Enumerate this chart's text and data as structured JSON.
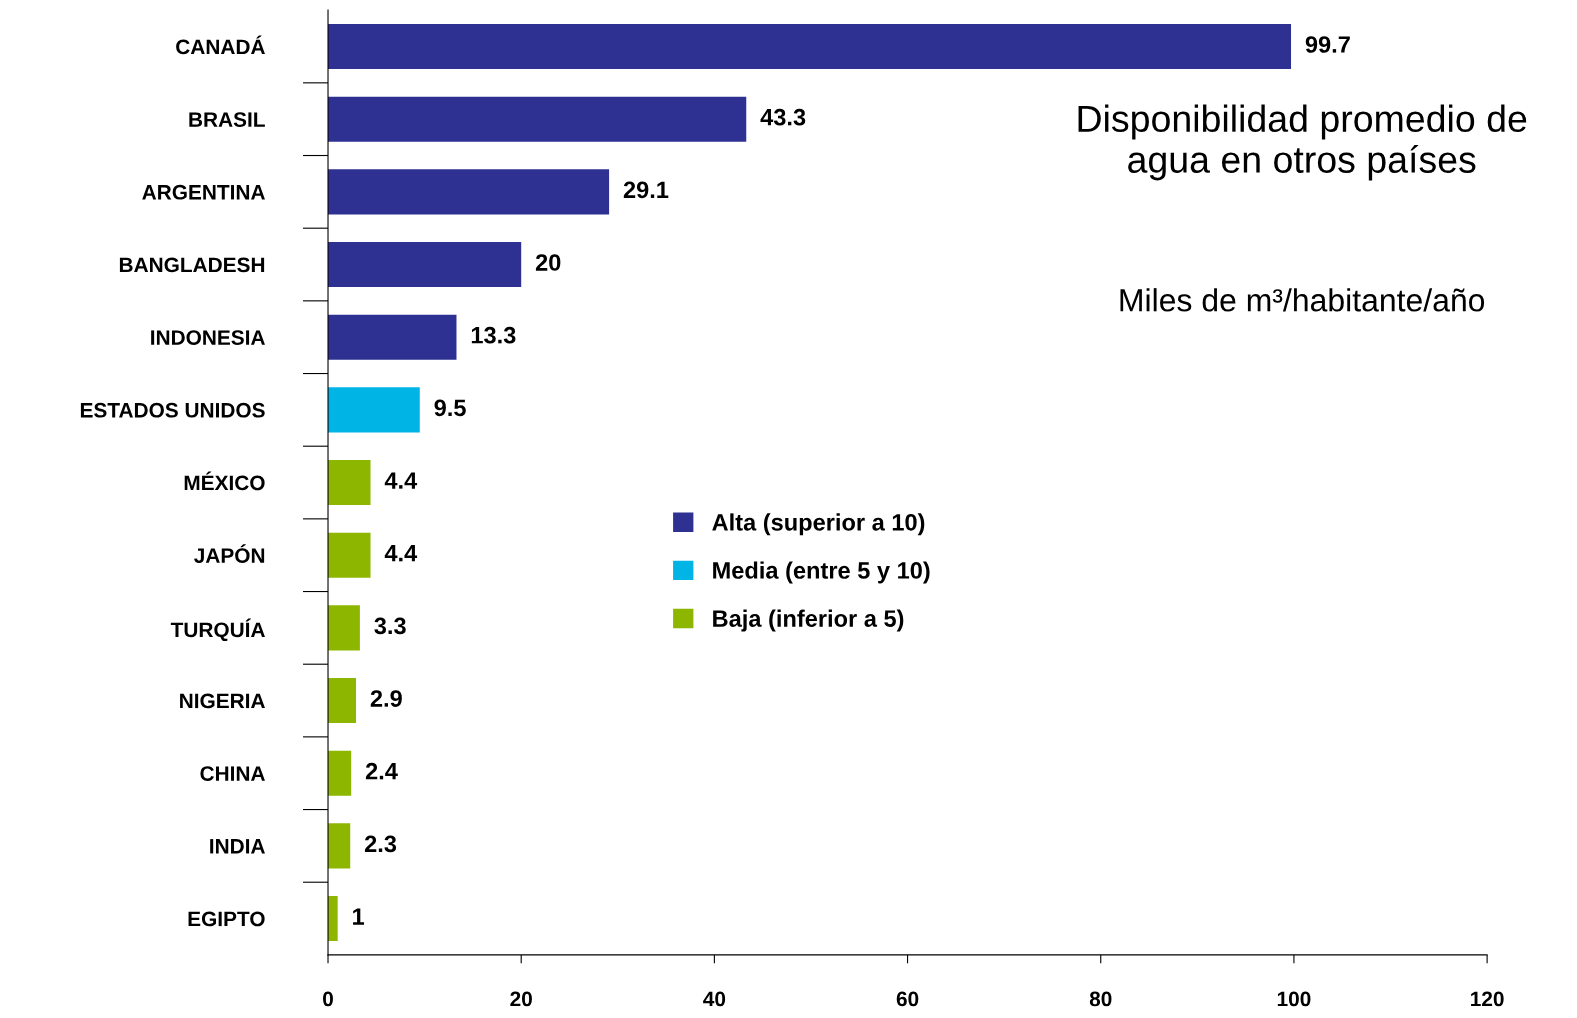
{
  "chart_data": {
    "type": "bar",
    "orientation": "horizontal",
    "title": "Disponibilidad promedio de\nagua en otros países",
    "subtitle": "Miles de m³/habitante/año",
    "categories": [
      "CANADÁ",
      "BRASIL",
      "ARGENTINA",
      "BANGLADESH",
      "INDONESIA",
      "ESTADOS UNIDOS",
      "MÉXICO",
      "JAPÓN",
      "TURQUÍA",
      "NIGERIA",
      "CHINA",
      "INDIA",
      "EGIPTO"
    ],
    "series": [
      {
        "name": "Alta (superior a 10)",
        "color": "#2e3192",
        "values": [
          99.7,
          43.3,
          29.1,
          20,
          13.3,
          null,
          null,
          null,
          null,
          null,
          null,
          null,
          null
        ]
      },
      {
        "name": "Media (entre 5 y 10)",
        "color": "#00b4e6",
        "values": [
          null,
          null,
          null,
          null,
          null,
          9.5,
          null,
          null,
          null,
          null,
          null,
          null,
          null
        ]
      },
      {
        "name": "Baja (inferior a 5)",
        "color": "#8db600",
        "values": [
          null,
          null,
          null,
          null,
          null,
          null,
          4.4,
          4.4,
          3.3,
          2.9,
          2.4,
          2.3,
          1
        ]
      }
    ],
    "xlim": [
      0,
      120
    ],
    "xticks": [
      0,
      20,
      40,
      60,
      80,
      100,
      120
    ],
    "data_labels": true,
    "legend": "center",
    "grid": false
  }
}
